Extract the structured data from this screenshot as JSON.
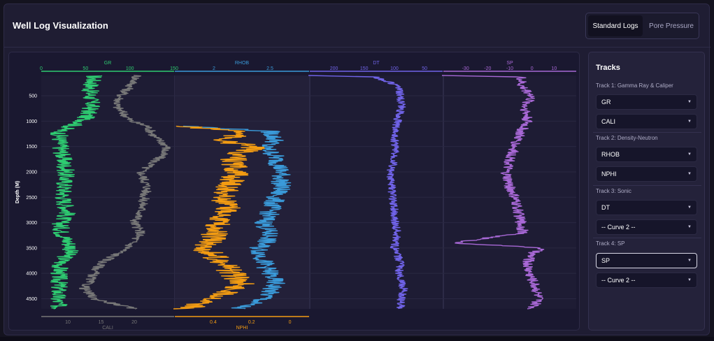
{
  "header": {
    "title": "Well Log Visualization"
  },
  "toggle": {
    "standard_label": "Standard Logs",
    "pore_label": "Pore Pressure"
  },
  "sidebar": {
    "title": "Tracks",
    "tracks": [
      {
        "label": "Track 1: Gamma Ray & Caliper",
        "curve1": "GR",
        "curve2": "CALI"
      },
      {
        "label": "Track 2: Density-Neutron",
        "curve1": "RHOB",
        "curve2": "NPHI"
      },
      {
        "label": "Track 3: Sonic",
        "curve1": "DT",
        "curve2": "-- Curve 2 --"
      },
      {
        "label": "Track 4: SP",
        "curve1": "SP",
        "curve2": "-- Curve 2 --"
      }
    ]
  },
  "chart_data": {
    "type": "line",
    "ylabel": "Depth (M)",
    "yticks": [
      "500",
      "1000",
      "1500",
      "2000",
      "2500",
      "3000",
      "3500",
      "4000",
      "4500"
    ],
    "ylim": [
      4700,
      100
    ],
    "tracks": [
      {
        "top_axis": {
          "name": "GR",
          "color": "#2ecc71",
          "ticks": [
            "0",
            "50",
            "100",
            "150"
          ],
          "range": [
            0,
            150
          ]
        },
        "bottom_axis": {
          "name": "CALI",
          "color": "#777777",
          "ticks": [
            "10",
            "15",
            "20"
          ],
          "range": [
            6,
            26
          ]
        }
      },
      {
        "top_axis": {
          "name": "RHOB",
          "color": "#3a9ad9",
          "ticks": [
            "2",
            "2.5"
          ],
          "range": [
            1.65,
            2.85
          ]
        },
        "bottom_axis": {
          "name": "NPHI",
          "color": "#f39c12",
          "ticks": [
            "0.4",
            "0.2",
            "0"
          ],
          "range": [
            0.6,
            -0.1
          ]
        }
      },
      {
        "top_axis": {
          "name": "DT",
          "color": "#7063e8",
          "ticks": [
            "200",
            "150",
            "100",
            "50"
          ],
          "range": [
            240,
            20
          ]
        }
      },
      {
        "top_axis": {
          "name": "SP",
          "color": "#a868d6",
          "ticks": [
            "-30",
            "-20",
            "-10",
            "0",
            "10"
          ],
          "range": [
            -40,
            20
          ]
        }
      }
    ],
    "series": [
      {
        "name": "GR",
        "color": "#2ecc71",
        "values": [
          [
            "100",
            60
          ],
          [
            "400",
            55
          ],
          [
            "700",
            57
          ],
          [
            "1000",
            48
          ],
          [
            "1200",
            20
          ],
          [
            "1500",
            22
          ],
          [
            "2000",
            28
          ],
          [
            "2300",
            26
          ],
          [
            "2500",
            25
          ],
          [
            "2800",
            30
          ],
          [
            "3000",
            22
          ],
          [
            "3200",
            23
          ],
          [
            "3500",
            35
          ],
          [
            "3800",
            22
          ],
          [
            "4000",
            20
          ],
          [
            "4300",
            20
          ],
          [
            "4500",
            18
          ],
          [
            "4700",
            20
          ]
        ]
      },
      {
        "name": "CALI",
        "color": "#777777",
        "values": [
          [
            "100",
            20.5
          ],
          [
            "300",
            19.5
          ],
          [
            "500",
            18
          ],
          [
            "700",
            17.3
          ],
          [
            "1000",
            19.5
          ],
          [
            "1100",
            22
          ],
          [
            "1300",
            23
          ],
          [
            "1500",
            25
          ],
          [
            "1700",
            24
          ],
          [
            "1800",
            23
          ],
          [
            "2000",
            21
          ],
          [
            "2300",
            22
          ],
          [
            "2500",
            21.5
          ],
          [
            "2800",
            21
          ],
          [
            "3000",
            20
          ],
          [
            "3200",
            21
          ],
          [
            "3500",
            19
          ],
          [
            "3800",
            15
          ],
          [
            "4000",
            14
          ],
          [
            "4300",
            12.5
          ],
          [
            "4500",
            14
          ],
          [
            "4700",
            20
          ]
        ]
      },
      {
        "name": "RHOB",
        "color": "#3a9ad9",
        "values": [
          [
            "1100",
            1.75
          ],
          [
            "1200",
            2.5
          ],
          [
            "1400",
            2.55
          ],
          [
            "1500",
            2.45
          ],
          [
            "1700",
            2.55
          ],
          [
            "2000",
            2.6
          ],
          [
            "2300",
            2.6
          ],
          [
            "2500",
            2.55
          ],
          [
            "2800",
            2.5
          ],
          [
            "3000",
            2.45
          ],
          [
            "3300",
            2.5
          ],
          [
            "3500",
            2.4
          ],
          [
            "3800",
            2.45
          ],
          [
            "4000",
            2.5
          ],
          [
            "4200",
            2.55
          ],
          [
            "4500",
            2.45
          ],
          [
            "4700",
            2.2
          ]
        ]
      },
      {
        "name": "NPHI",
        "color": "#f39c12",
        "values": [
          [
            "1100",
            0.58
          ],
          [
            "1200",
            0.25
          ],
          [
            "1400",
            0.35
          ],
          [
            "1500",
            0.18
          ],
          [
            "1700",
            0.3
          ],
          [
            "2000",
            0.28
          ],
          [
            "2300",
            0.32
          ],
          [
            "2500",
            0.35
          ],
          [
            "2800",
            0.32
          ],
          [
            "3000",
            0.38
          ],
          [
            "3300",
            0.4
          ],
          [
            "3500",
            0.45
          ],
          [
            "3800",
            0.35
          ],
          [
            "4000",
            0.3
          ],
          [
            "4200",
            0.25
          ],
          [
            "4500",
            0.38
          ],
          [
            "4700",
            0.55
          ]
        ]
      },
      {
        "name": "DT",
        "color": "#7063e8",
        "values": [
          [
            "100",
            240
          ],
          [
            "130",
            130
          ],
          [
            "300",
            95
          ],
          [
            "500",
            90
          ],
          [
            "700",
            88
          ],
          [
            "1000",
            95
          ],
          [
            "1300",
            100
          ],
          [
            "1500",
            98
          ],
          [
            "1800",
            100
          ],
          [
            "2000",
            108
          ],
          [
            "2300",
            105
          ],
          [
            "2500",
            102
          ],
          [
            "2800",
            100
          ],
          [
            "3000",
            98
          ],
          [
            "3200",
            95
          ],
          [
            "3500",
            100
          ],
          [
            "3800",
            90
          ],
          [
            "4000",
            92
          ],
          [
            "4300",
            85
          ],
          [
            "4500",
            88
          ],
          [
            "4700",
            90
          ]
        ]
      },
      {
        "name": "SP",
        "color": "#a868d6",
        "values": [
          [
            "100",
            -40
          ],
          [
            "130",
            -5
          ],
          [
            "300",
            -5
          ],
          [
            "500",
            0
          ],
          [
            "700",
            -3
          ],
          [
            "1000",
            -2
          ],
          [
            "1200",
            -5
          ],
          [
            "1500",
            -8
          ],
          [
            "1800",
            -10
          ],
          [
            "2000",
            -12
          ],
          [
            "2300",
            -10
          ],
          [
            "2500",
            -8
          ],
          [
            "2800",
            -6
          ],
          [
            "3000",
            -5
          ],
          [
            "3200",
            -4
          ],
          [
            "3400",
            -35
          ],
          [
            "3500",
            5
          ],
          [
            "3600",
            0
          ],
          [
            "3800",
            -2
          ],
          [
            "4000",
            -1
          ],
          [
            "4300",
            2
          ],
          [
            "4500",
            3
          ],
          [
            "4700",
            0
          ]
        ]
      }
    ]
  }
}
